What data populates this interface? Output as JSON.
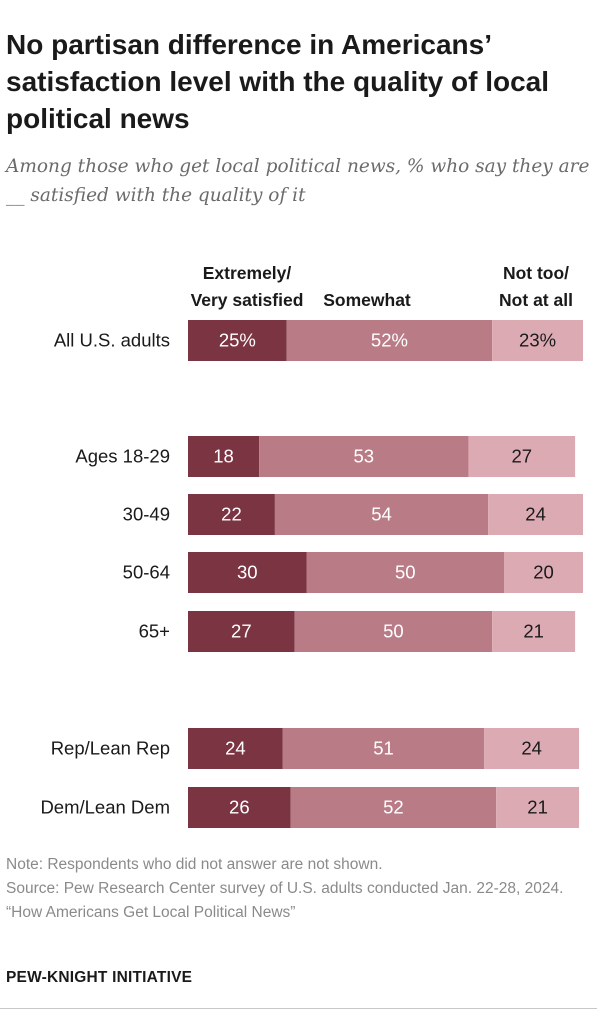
{
  "title": "No partisan difference in Americans’ satisfaction level with the quality of local political news",
  "subtitle": "Among those who get local political news, % who say they are __ satisfied with the quality of it",
  "colors": {
    "extremely": "#7b3442",
    "somewhat": "#b97c87",
    "not": "#dcaab3"
  },
  "chart_data": {
    "type": "bar",
    "orientation": "horizontal",
    "stacked": true,
    "legend_placement": "top",
    "series": [
      {
        "name": "Extremely/ Very satisfied",
        "legend_lines": [
          "Extremely/",
          "Very satisfied"
        ]
      },
      {
        "name": "Somewhat",
        "legend_lines": [
          "Somewhat"
        ]
      },
      {
        "name": "Not too/ Not at all",
        "legend_lines": [
          "Not too/",
          "Not at all"
        ]
      }
    ],
    "rows": [
      {
        "label": "All U.S. adults",
        "values": [
          25,
          52,
          23
        ],
        "display": [
          "25%",
          "52%",
          "23%"
        ]
      },
      {
        "label": "Ages 18-29",
        "values": [
          18,
          53,
          27
        ],
        "display": [
          "18",
          "53",
          "27"
        ]
      },
      {
        "label": "30-49",
        "values": [
          22,
          54,
          24
        ],
        "display": [
          "22",
          "54",
          "24"
        ]
      },
      {
        "label": "50-64",
        "values": [
          30,
          50,
          20
        ],
        "display": [
          "30",
          "50",
          "20"
        ]
      },
      {
        "label": "65+",
        "values": [
          27,
          50,
          21
        ],
        "display": [
          "27",
          "50",
          "21"
        ]
      },
      {
        "label": "Rep/Lean Rep",
        "values": [
          24,
          51,
          24
        ],
        "display": [
          "24",
          "51",
          "24"
        ]
      },
      {
        "label": "Dem/Lean Dem",
        "values": [
          26,
          52,
          21
        ],
        "display": [
          "26",
          "52",
          "21"
        ]
      }
    ]
  },
  "notes": {
    "note": "Note: Respondents who did not answer are not shown.",
    "source": "Source: Pew Research Center survey of U.S. adults conducted Jan. 22-28, 2024.",
    "report": "“How Americans Get Local Political News”"
  },
  "brand": "PEW-KNIGHT INITIATIVE"
}
